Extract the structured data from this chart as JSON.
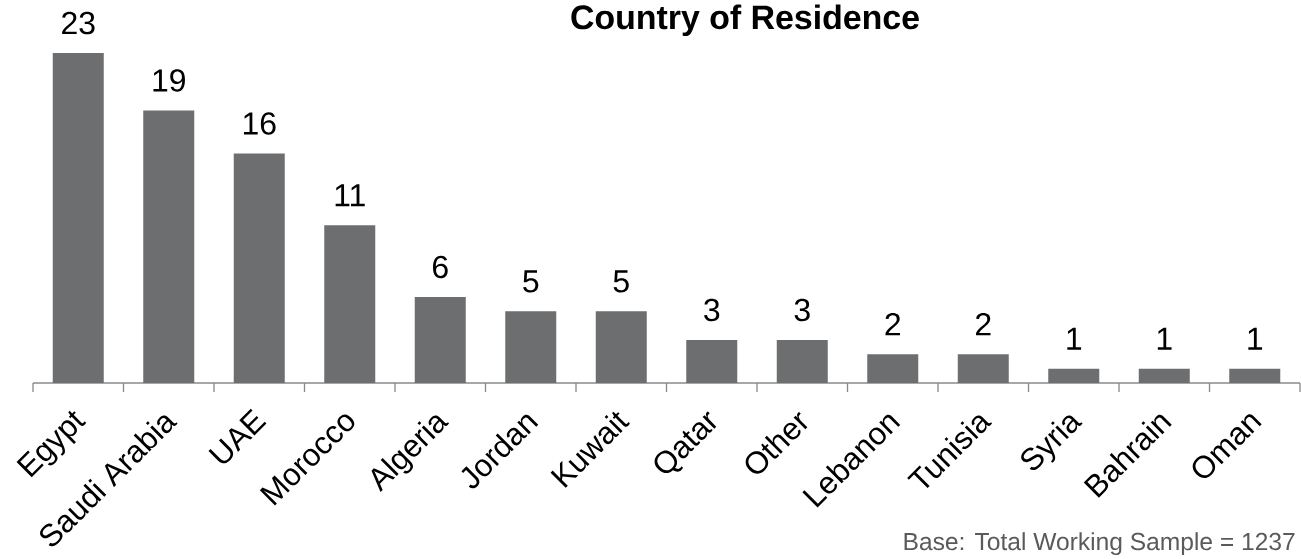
{
  "chart_data": {
    "type": "bar",
    "title": "Country of Residence",
    "categories": [
      "Egypt",
      "Saudi Arabia",
      "UAE",
      "Morocco",
      "Algeria",
      "Jordan",
      "Kuwait",
      "Qatar",
      "Other",
      "Lebanon",
      "Tunisia",
      "Syria",
      "Bahrain",
      "Oman"
    ],
    "values": [
      23,
      19,
      16,
      11,
      6,
      5,
      5,
      3,
      3,
      2,
      2,
      1,
      1,
      1
    ],
    "color": "#6d6e70",
    "data_labels": true,
    "annotations": [
      "Base: Total Working Sample = 1237"
    ]
  }
}
